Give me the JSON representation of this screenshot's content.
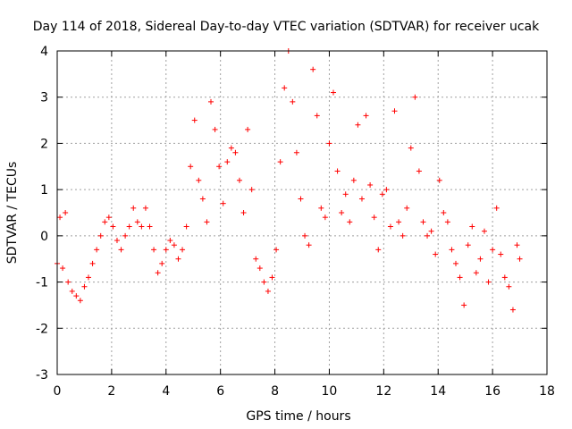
{
  "chart_data": {
    "type": "scatter",
    "title": "Day 114 of 2018, Sidereal Day-to-day VTEC variation (SDTVAR) for receiver ucak",
    "xlabel": "GPS time / hours",
    "ylabel": "SDTVAR / TECUs",
    "xlim": [
      0,
      18
    ],
    "ylim": [
      -3,
      4
    ],
    "xticks": [
      "0",
      "2",
      "4",
      "6",
      "8",
      "10",
      "12",
      "14",
      "16",
      "18"
    ],
    "yticks": [
      "-3",
      "-2",
      "-1",
      "0",
      "1",
      "2",
      "3",
      "4"
    ],
    "grid": true,
    "marker": "+",
    "series_color": "#ff0000",
    "series": [
      {
        "name": "SDTVAR",
        "x": [
          0.0,
          0.1,
          0.2,
          0.3,
          0.4,
          0.55,
          0.7,
          0.85,
          1.0,
          1.15,
          1.3,
          1.45,
          1.6,
          1.75,
          1.9,
          2.05,
          2.2,
          2.35,
          2.5,
          2.65,
          2.8,
          2.95,
          3.1,
          3.25,
          3.4,
          3.55,
          3.7,
          3.85,
          4.0,
          4.15,
          4.3,
          4.45,
          4.6,
          4.75,
          4.9,
          5.05,
          5.2,
          5.35,
          5.5,
          5.65,
          5.8,
          5.95,
          6.1,
          6.25,
          6.4,
          6.55,
          6.7,
          6.85,
          7.0,
          7.15,
          7.3,
          7.45,
          7.6,
          7.75,
          7.9,
          8.05,
          8.2,
          8.35,
          8.5,
          8.65,
          8.8,
          8.95,
          9.1,
          9.25,
          9.4,
          9.55,
          9.7,
          9.85,
          10.0,
          10.15,
          10.3,
          10.45,
          10.6,
          10.75,
          10.9,
          11.05,
          11.2,
          11.35,
          11.5,
          11.65,
          11.8,
          11.95,
          12.1,
          12.25,
          12.4,
          12.55,
          12.7,
          12.85,
          13.0,
          13.15,
          13.3,
          13.45,
          13.6,
          13.75,
          13.9,
          14.05,
          14.2,
          14.35,
          14.5,
          14.65,
          14.8,
          14.95,
          15.1,
          15.25,
          15.4,
          15.55,
          15.7,
          15.85,
          16.0,
          16.15,
          16.3,
          16.45,
          16.6,
          16.75,
          16.9,
          17.0
        ],
        "y": [
          -0.6,
          0.4,
          -0.7,
          0.5,
          -1.0,
          -1.2,
          -1.3,
          -1.4,
          -1.1,
          -0.9,
          -0.6,
          -0.3,
          0.0,
          0.3,
          0.4,
          0.2,
          -0.1,
          -0.3,
          0.0,
          0.2,
          0.6,
          0.3,
          0.2,
          0.6,
          0.2,
          -0.3,
          -0.8,
          -0.6,
          -0.3,
          -0.1,
          -0.2,
          -0.5,
          -0.3,
          0.2,
          1.5,
          2.5,
          1.2,
          0.8,
          0.3,
          2.9,
          2.3,
          1.5,
          0.7,
          1.6,
          1.9,
          1.8,
          1.2,
          0.5,
          2.3,
          1.0,
          -0.5,
          -0.7,
          -1.0,
          -1.2,
          -0.9,
          -0.3,
          1.6,
          3.2,
          4.0,
          2.9,
          1.8,
          0.8,
          0.0,
          -0.2,
          3.6,
          2.6,
          0.6,
          0.4,
          2.0,
          3.1,
          1.4,
          0.5,
          0.9,
          0.3,
          1.2,
          2.4,
          0.8,
          2.6,
          1.1,
          0.4,
          -0.3,
          0.9,
          1.0,
          0.2,
          2.7,
          0.3,
          0.0,
          0.6,
          1.9,
          3.0,
          1.4,
          0.3,
          0.0,
          0.1,
          -0.4,
          1.2,
          0.5,
          0.3,
          -0.3,
          -0.6,
          -0.9,
          -1.5,
          -0.2,
          0.2,
          -0.8,
          -0.5,
          0.1,
          -1.0,
          -0.3,
          0.6,
          -0.4,
          -0.9,
          -1.1,
          -1.6,
          -0.2,
          -0.5
        ]
      }
    ]
  }
}
